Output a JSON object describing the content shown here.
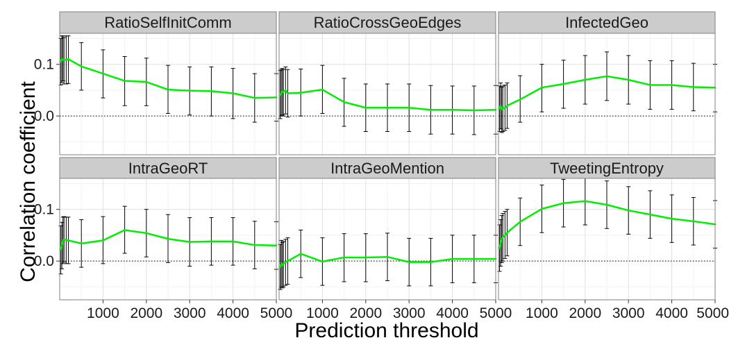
{
  "chart_data": {
    "type": "line",
    "layout": "facet-grid",
    "xlabel": "Prediction threshold",
    "ylabel": "Correlation coefficient",
    "xlim": [
      0,
      5000
    ],
    "ylim": [
      -0.075,
      0.16
    ],
    "x_ticks": [
      1000,
      2000,
      3000,
      4000,
      5000
    ],
    "x_tick_labels": [
      "1000",
      "2000",
      "3000",
      "4000",
      "5000"
    ],
    "y_ticks": [
      0.0,
      0.1
    ],
    "y_tick_labels": [
      "0.0",
      "0.1"
    ],
    "reference_line": 0.0,
    "grid": true,
    "line_color": "#00ee00",
    "errorbar_color": "#000000",
    "panel_border_color": "#7f7f7f",
    "strip_fill": "#cccccc",
    "panels": [
      {
        "title": "RatioSelfInitComm",
        "x": [
          25,
          50,
          75,
          100,
          150,
          200,
          500,
          1000,
          1500,
          2000,
          2500,
          3000,
          3500,
          4000,
          4500,
          5000
        ],
        "y": [
          0.105,
          0.11,
          0.11,
          0.108,
          0.109,
          0.11,
          0.096,
          0.082,
          0.068,
          0.066,
          0.051,
          0.049,
          0.048,
          0.044,
          0.035,
          0.036
        ],
        "lo": [
          0.06,
          0.065,
          0.068,
          0.062,
          0.062,
          0.063,
          0.05,
          0.035,
          0.02,
          0.02,
          0.005,
          0.002,
          0.0,
          -0.005,
          -0.012,
          -0.01
        ],
        "hi": [
          0.15,
          0.155,
          0.155,
          0.152,
          0.155,
          0.155,
          0.142,
          0.128,
          0.115,
          0.112,
          0.098,
          0.095,
          0.095,
          0.092,
          0.082,
          0.082
        ]
      },
      {
        "title": "RatioCrossGeoEdges",
        "x": [
          25,
          50,
          75,
          100,
          150,
          200,
          500,
          1000,
          1500,
          2000,
          2500,
          3000,
          3500,
          4000,
          4500,
          5000
        ],
        "y": [
          0.04,
          0.045,
          0.048,
          0.046,
          0.05,
          0.044,
          0.045,
          0.051,
          0.027,
          0.016,
          0.016,
          0.016,
          0.012,
          0.012,
          0.011,
          0.012
        ],
        "lo": [
          -0.005,
          0.0,
          0.002,
          0.0,
          0.004,
          -0.002,
          0.0,
          0.005,
          -0.02,
          -0.03,
          -0.03,
          -0.03,
          -0.035,
          -0.035,
          -0.036,
          -0.035
        ],
        "hi": [
          0.088,
          0.09,
          0.092,
          0.09,
          0.095,
          0.09,
          0.091,
          0.098,
          0.073,
          0.062,
          0.062,
          0.062,
          0.059,
          0.058,
          0.058,
          0.059
        ]
      },
      {
        "title": "InfectedGeo",
        "x": [
          25,
          50,
          75,
          100,
          150,
          200,
          500,
          1000,
          1500,
          2000,
          2500,
          3000,
          3500,
          4000,
          4500,
          5000
        ],
        "y": [
          0.014,
          0.02,
          0.012,
          0.014,
          0.016,
          0.02,
          0.032,
          0.055,
          0.062,
          0.07,
          0.077,
          0.07,
          0.06,
          0.06,
          0.056,
          0.055
        ],
        "lo": [
          -0.03,
          -0.025,
          -0.032,
          -0.03,
          -0.028,
          -0.024,
          -0.012,
          0.008,
          0.015,
          0.023,
          0.03,
          0.023,
          0.013,
          0.013,
          0.01,
          0.008
        ],
        "hi": [
          0.058,
          0.064,
          0.056,
          0.058,
          0.06,
          0.064,
          0.078,
          0.1,
          0.108,
          0.117,
          0.124,
          0.117,
          0.107,
          0.107,
          0.102,
          0.1
        ]
      },
      {
        "title": "IntraGeoRT",
        "x": [
          25,
          50,
          75,
          100,
          150,
          200,
          500,
          1000,
          1500,
          2000,
          2500,
          3000,
          3500,
          4000,
          4500,
          5000
        ],
        "y": [
          0.022,
          0.03,
          0.04,
          0.042,
          0.04,
          0.04,
          0.034,
          0.04,
          0.06,
          0.054,
          0.043,
          0.037,
          0.038,
          0.038,
          0.031,
          0.03
        ],
        "lo": [
          -0.025,
          -0.015,
          -0.005,
          -0.002,
          -0.005,
          -0.005,
          -0.012,
          -0.005,
          0.015,
          0.008,
          -0.003,
          -0.01,
          -0.008,
          -0.008,
          -0.015,
          -0.016
        ],
        "hi": [
          0.068,
          0.075,
          0.085,
          0.086,
          0.085,
          0.085,
          0.08,
          0.086,
          0.106,
          0.1,
          0.09,
          0.084,
          0.084,
          0.084,
          0.077,
          0.076
        ]
      },
      {
        "title": "IntraGeoMention",
        "x": [
          25,
          50,
          75,
          100,
          150,
          200,
          500,
          1000,
          1500,
          2000,
          2500,
          3000,
          3500,
          4000,
          4500,
          5000
        ],
        "y": [
          -0.012,
          -0.005,
          -0.008,
          -0.006,
          -0.002,
          0.0,
          0.014,
          -0.001,
          0.007,
          0.007,
          0.008,
          -0.002,
          -0.002,
          0.004,
          0.004,
          0.004
        ],
        "lo": [
          -0.055,
          -0.05,
          -0.052,
          -0.05,
          -0.047,
          -0.045,
          -0.032,
          -0.047,
          -0.04,
          -0.04,
          -0.038,
          -0.048,
          -0.048,
          -0.042,
          -0.042,
          -0.042
        ],
        "hi": [
          0.032,
          0.04,
          0.036,
          0.038,
          0.042,
          0.045,
          0.06,
          0.045,
          0.053,
          0.053,
          0.054,
          0.044,
          0.044,
          0.05,
          0.05,
          0.05
        ]
      },
      {
        "title": "TweetingEntropy",
        "x": [
          25,
          50,
          75,
          100,
          150,
          200,
          500,
          1000,
          1500,
          2000,
          2500,
          3000,
          3500,
          4000,
          4500,
          5000
        ],
        "y": [
          0.025,
          0.035,
          0.042,
          0.046,
          0.05,
          0.055,
          0.076,
          0.101,
          0.112,
          0.116,
          0.109,
          0.098,
          0.09,
          0.082,
          0.077,
          0.071
        ],
        "lo": [
          -0.02,
          -0.01,
          -0.003,
          0.0,
          0.005,
          0.01,
          0.03,
          0.055,
          0.066,
          0.07,
          0.063,
          0.052,
          0.044,
          0.036,
          0.031,
          0.025
        ],
        "hi": [
          0.07,
          0.08,
          0.088,
          0.092,
          0.096,
          0.1,
          0.122,
          0.147,
          0.158,
          0.162,
          0.155,
          0.144,
          0.136,
          0.128,
          0.123,
          0.117
        ]
      }
    ]
  }
}
